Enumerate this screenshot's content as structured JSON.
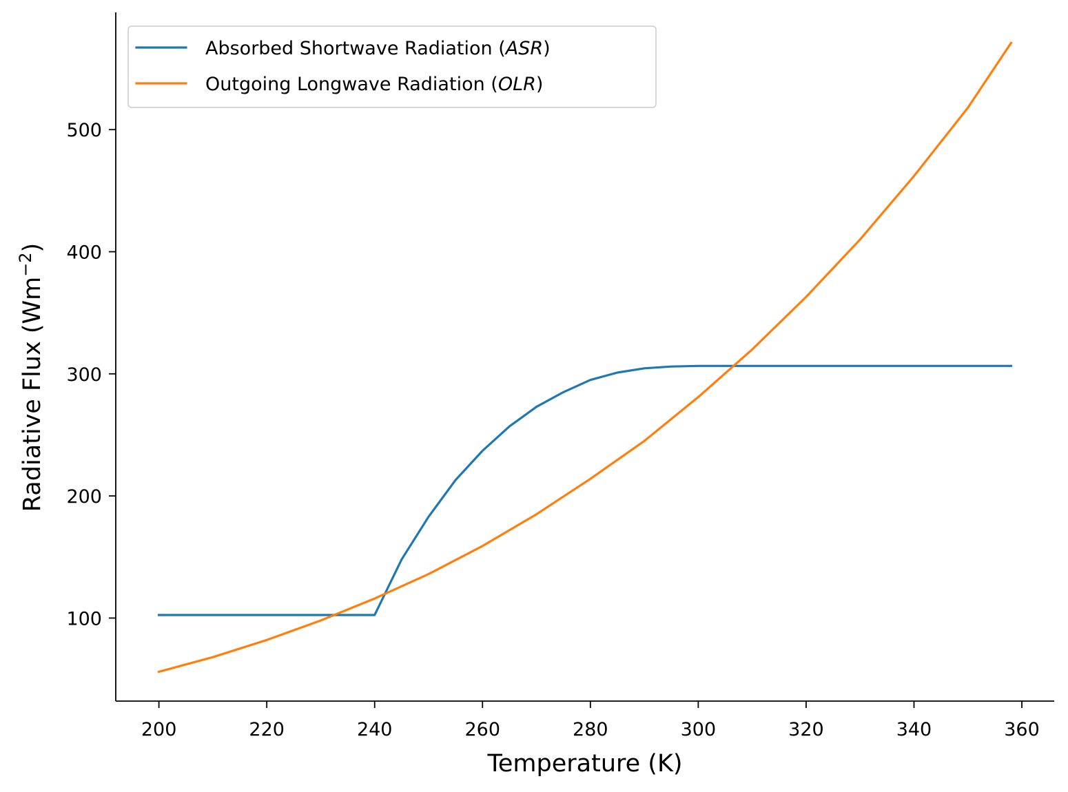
{
  "chart_data": {
    "type": "line",
    "xlabel": "Temperature (K)",
    "ylabel": "Radiative Flux (Wm",
    "ylabel_sup": "−2",
    "ylabel_close": ")",
    "xlim": [
      192,
      366
    ],
    "ylim": [
      32,
      596
    ],
    "xticks": [
      200,
      220,
      240,
      260,
      280,
      300,
      320,
      340,
      360
    ],
    "yticks": [
      100,
      200,
      300,
      400,
      500
    ],
    "grid": false,
    "legend_position": "top-left",
    "series": [
      {
        "name_prefix": "Absorbed Shortwave Radiation (",
        "name_italic": "ASR",
        "name_suffix": ")",
        "color": "#1f77b4",
        "x": [
          200,
          210,
          220,
          230,
          240,
          245,
          250,
          255,
          260,
          265,
          270,
          275,
          280,
          285,
          290,
          295,
          300,
          310,
          320,
          330,
          340,
          350,
          358
        ],
        "y": [
          102.5,
          102.5,
          102.5,
          102.5,
          102.5,
          148,
          183,
          213,
          237,
          257,
          273,
          285,
          295,
          301,
          304.5,
          306,
          306.5,
          306.5,
          306.5,
          306.5,
          306.5,
          306.5,
          306.5
        ]
      },
      {
        "name_prefix": "Outgoing Longwave Radiation (",
        "name_italic": "OLR",
        "name_suffix": ")",
        "color": "#ff7f0e",
        "x": [
          200,
          210,
          220,
          230,
          240,
          250,
          260,
          270,
          280,
          290,
          300,
          310,
          320,
          330,
          340,
          350,
          358
        ],
        "y": [
          56,
          68,
          82,
          98,
          116,
          136,
          159,
          185,
          214,
          245,
          281,
          320,
          363,
          410,
          462,
          518,
          571
        ]
      }
    ]
  }
}
